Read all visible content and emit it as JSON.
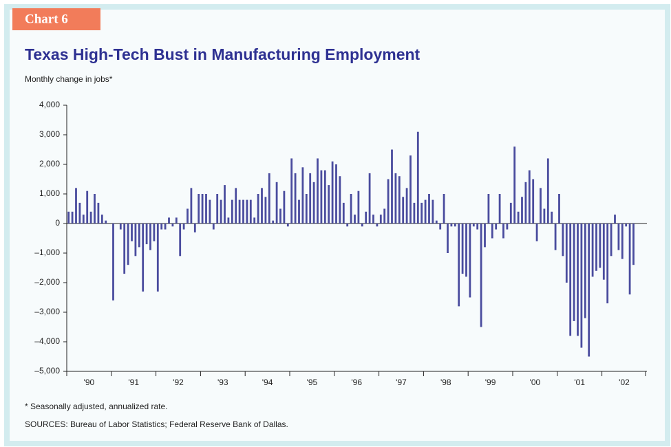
{
  "tab": "Chart 6",
  "notes": [
    "* Seasonally adjusted, annualized rate.",
    "SOURCES: Bureau of Labor Statistics; Federal Reserve Bank of Dallas."
  ],
  "chart_data": {
    "type": "bar",
    "title": "Texas High-Tech Bust in Manufacturing Employment",
    "subtitle": "Monthly change in jobs*",
    "color": "#4a4c9e",
    "ylim": [
      -5000,
      4000
    ],
    "yticks": [
      {
        "value": 4000,
        "label": "4,000"
      },
      {
        "value": 3000,
        "label": "3,000"
      },
      {
        "value": 2000,
        "label": "2,000"
      },
      {
        "value": 1000,
        "label": "1,000"
      },
      0,
      {
        "value": -1000,
        "label": "–1,000"
      },
      {
        "value": -2000,
        "label": "–2,000"
      },
      {
        "value": -3000,
        "label": "–3,000"
      },
      {
        "value": -4000,
        "label": "–4,000"
      },
      {
        "value": -5000,
        "label": "–5,000"
      }
    ],
    "categories": [
      null,
      null,
      null,
      null,
      null,
      null,
      "'90",
      null,
      null,
      null,
      null,
      null,
      null,
      null,
      null,
      null,
      null,
      null,
      "'91",
      null,
      null,
      null,
      null,
      null,
      null,
      null,
      null,
      null,
      null,
      null,
      "'92",
      null,
      null,
      null,
      null,
      null,
      null,
      null,
      null,
      null,
      null,
      null,
      "'93",
      null,
      null,
      null,
      null,
      null,
      null,
      null,
      null,
      null,
      null,
      null,
      "'94",
      null,
      null,
      null,
      null,
      null,
      null,
      null,
      null,
      null,
      null,
      null,
      "'95",
      null,
      null,
      null,
      null,
      null,
      null,
      null,
      null,
      null,
      null,
      null,
      "'96",
      null,
      null,
      null,
      null,
      null,
      null,
      null,
      null,
      null,
      null,
      null,
      "'97",
      null,
      null,
      null,
      null,
      null,
      null,
      null,
      null,
      null,
      null,
      null,
      "'98",
      null,
      null,
      null,
      null,
      null,
      null,
      null,
      null,
      null,
      null,
      null,
      "'99",
      null,
      null,
      null,
      null,
      null,
      null,
      null,
      null,
      null,
      null,
      null,
      "'00",
      null,
      null,
      null,
      null,
      null,
      null,
      null,
      null,
      null,
      null,
      null,
      "'01",
      null,
      null,
      null,
      null,
      null,
      null,
      null,
      null,
      null,
      null,
      null,
      "'02",
      null,
      null
    ],
    "values": [
      400,
      400,
      1200,
      700,
      300,
      1100,
      400,
      1000,
      700,
      300,
      100,
      0,
      -2600,
      0,
      -200,
      -1700,
      -1400,
      -600,
      -1100,
      -800,
      -2300,
      -700,
      -900,
      -600,
      -2300,
      -200,
      -200,
      200,
      -100,
      200,
      -1100,
      -200,
      500,
      1200,
      -300,
      1000,
      1000,
      1000,
      800,
      -200,
      1000,
      800,
      1300,
      200,
      800,
      1200,
      800,
      800,
      800,
      800,
      200,
      1000,
      1200,
      900,
      1700,
      100,
      1400,
      500,
      1100,
      -100,
      2200,
      1700,
      800,
      1900,
      1000,
      1700,
      1400,
      2200,
      1800,
      1800,
      1300,
      2100,
      2000,
      1600,
      700,
      -100,
      1000,
      300,
      1100,
      -100,
      400,
      1700,
      300,
      -100,
      300,
      500,
      1500,
      2500,
      1700,
      1600,
      900,
      1200,
      2300,
      700,
      3100,
      700,
      800,
      1000,
      800,
      100,
      -200,
      1000,
      -1000,
      -100,
      -100,
      -2800,
      -1700,
      -1800,
      -2500,
      -100,
      -200,
      -3500,
      -800,
      1000,
      -500,
      -200,
      1000,
      -500,
      -200,
      700,
      2600,
      400,
      900,
      1400,
      1800,
      1500,
      -600,
      1200,
      500,
      2200,
      400,
      -900,
      1000,
      -1100,
      -2000,
      -3800,
      -3300,
      -3800,
      -4200,
      -3200,
      -4500,
      -1800,
      -1600,
      -1500,
      -1900,
      -2700,
      -1100,
      300,
      -900,
      -1200,
      -100,
      -2400,
      -1400
    ]
  }
}
